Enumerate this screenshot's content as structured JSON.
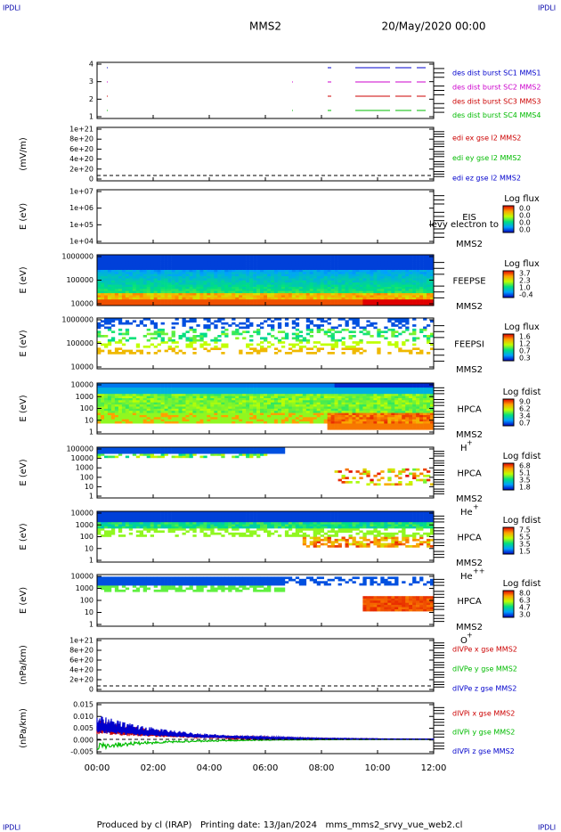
{
  "header": {
    "corner_top_left": "IPDLI",
    "corner_top_right": "IPDLI",
    "spacecraft": "MMS2",
    "date": "20/May/2020 00:00"
  },
  "panels": [
    {
      "ylabel": "",
      "yticks": [
        "4",
        "3",
        "2",
        "1"
      ],
      "legend": [
        {
          "text": "des dist burst SC1 MMS1",
          "color": "#0000cc"
        },
        {
          "text": "des dist burst SC2 MMS2",
          "color": "#cc00cc"
        },
        {
          "text": "des dist burst SC3 MMS3",
          "color": "#cc0000"
        },
        {
          "text": "des dist burst SC4 MMS4",
          "color": "#00bb00"
        }
      ]
    },
    {
      "ylabel": "(mV/m)",
      "yticks": [
        "1e+21",
        "8e+20",
        "6e+20",
        "4e+20",
        "2e+20",
        "0"
      ],
      "legend": [
        {
          "text": "edi ex gse l2 MMS2",
          "color": "#cc0000"
        },
        {
          "text": "edi ey gse l2 MMS2",
          "color": "#00bb00"
        },
        {
          "text": "edi ez gse l2 MMS2",
          "color": "#0000cc"
        }
      ]
    },
    {
      "ylabel": "E (eV)",
      "yticks": [
        "1e+07",
        "1e+06",
        "1e+05",
        "1e+04"
      ],
      "colorbar_title": "Log flux",
      "colorbar_ticks": [
        "0.0",
        "0.0",
        "0.0",
        "0.0"
      ],
      "instrument": [
        "EIS",
        "MMS2"
      ],
      "note": "levy electron to"
    },
    {
      "ylabel": "E (eV)",
      "yticks": [
        "1000000",
        "100000",
        "10000"
      ],
      "colorbar_title": "Log flux",
      "colorbar_ticks": [
        "3.7",
        "2.3",
        "1.0",
        "-0.4"
      ],
      "instrument": [
        "FEEPSE",
        "MMS2"
      ]
    },
    {
      "ylabel": "E (eV)",
      "yticks": [
        "1000000",
        "100000",
        "10000"
      ],
      "colorbar_title": "Log flux",
      "colorbar_ticks": [
        "1.6",
        "1.2",
        "0.7",
        "0.3"
      ],
      "instrument": [
        "FEEPSI",
        "MMS2"
      ]
    },
    {
      "ylabel": "E (eV)",
      "yticks": [
        "10000",
        "1000",
        "100",
        "10",
        "1"
      ],
      "colorbar_title": "Log fdist",
      "colorbar_ticks": [
        "9.0",
        "6.2",
        "3.4",
        "0.7"
      ],
      "instrument": [
        "HPCA",
        "MMS2"
      ],
      "species": {
        "base": "H",
        "charge": "+"
      }
    },
    {
      "ylabel": "E (eV)",
      "yticks": [
        "100000",
        "10000",
        "1000",
        "100",
        "10",
        "1"
      ],
      "colorbar_title": "Log fdist",
      "colorbar_ticks": [
        "6.8",
        "5.1",
        "3.5",
        "1.8"
      ],
      "instrument": [
        "HPCA",
        "MMS2"
      ],
      "species": {
        "base": "He",
        "charge": "+"
      }
    },
    {
      "ylabel": "E (eV)",
      "yticks": [
        "10000",
        "1000",
        "100",
        "10",
        "1"
      ],
      "colorbar_title": "Log fdist",
      "colorbar_ticks": [
        "7.5",
        "5.5",
        "3.5",
        "1.5"
      ],
      "instrument": [
        "HPCA",
        "MMS2"
      ],
      "species": {
        "base": "He",
        "charge": "++"
      }
    },
    {
      "ylabel": "E (eV)",
      "yticks": [
        "10000",
        "1000",
        "100",
        "10",
        "1"
      ],
      "colorbar_title": "Log fdist",
      "colorbar_ticks": [
        "8.0",
        "6.3",
        "4.7",
        "3.0"
      ],
      "instrument": [
        "HPCA",
        "MMS2"
      ],
      "species": {
        "base": "O",
        "charge": "+"
      }
    },
    {
      "ylabel": "(nPa/km)",
      "yticks": [
        "1e+21",
        "8e+20",
        "6e+20",
        "4e+20",
        "2e+20",
        "0"
      ],
      "legend": [
        {
          "text": "dIVPe x gse MMS2",
          "color": "#cc0000"
        },
        {
          "text": "dIVPe y gse MMS2",
          "color": "#00bb00"
        },
        {
          "text": "dIVPe z gse MMS2",
          "color": "#0000cc"
        }
      ]
    },
    {
      "ylabel": "(nPa/km)",
      "yticks": [
        "0.015",
        "0.010",
        "0.005",
        "0.000",
        "-0.005"
      ],
      "legend": [
        {
          "text": "dIVPi x gse MMS2",
          "color": "#cc0000"
        },
        {
          "text": "dIVPi y gse MMS2",
          "color": "#00bb00"
        },
        {
          "text": "dIVPi z gse MMS2",
          "color": "#0000cc"
        }
      ]
    }
  ],
  "xticks": [
    "00:00",
    "02:00",
    "04:00",
    "06:00",
    "08:00",
    "10:00",
    "12:00"
  ],
  "footer": {
    "text": "Produced by cl (IRAP)   Printing date: 13/Jan/2024   mms_mms2_srvy_vue_web2.cl",
    "corner_bottom_left": "IPDLI",
    "corner_bottom_right": "IPDLI"
  }
}
